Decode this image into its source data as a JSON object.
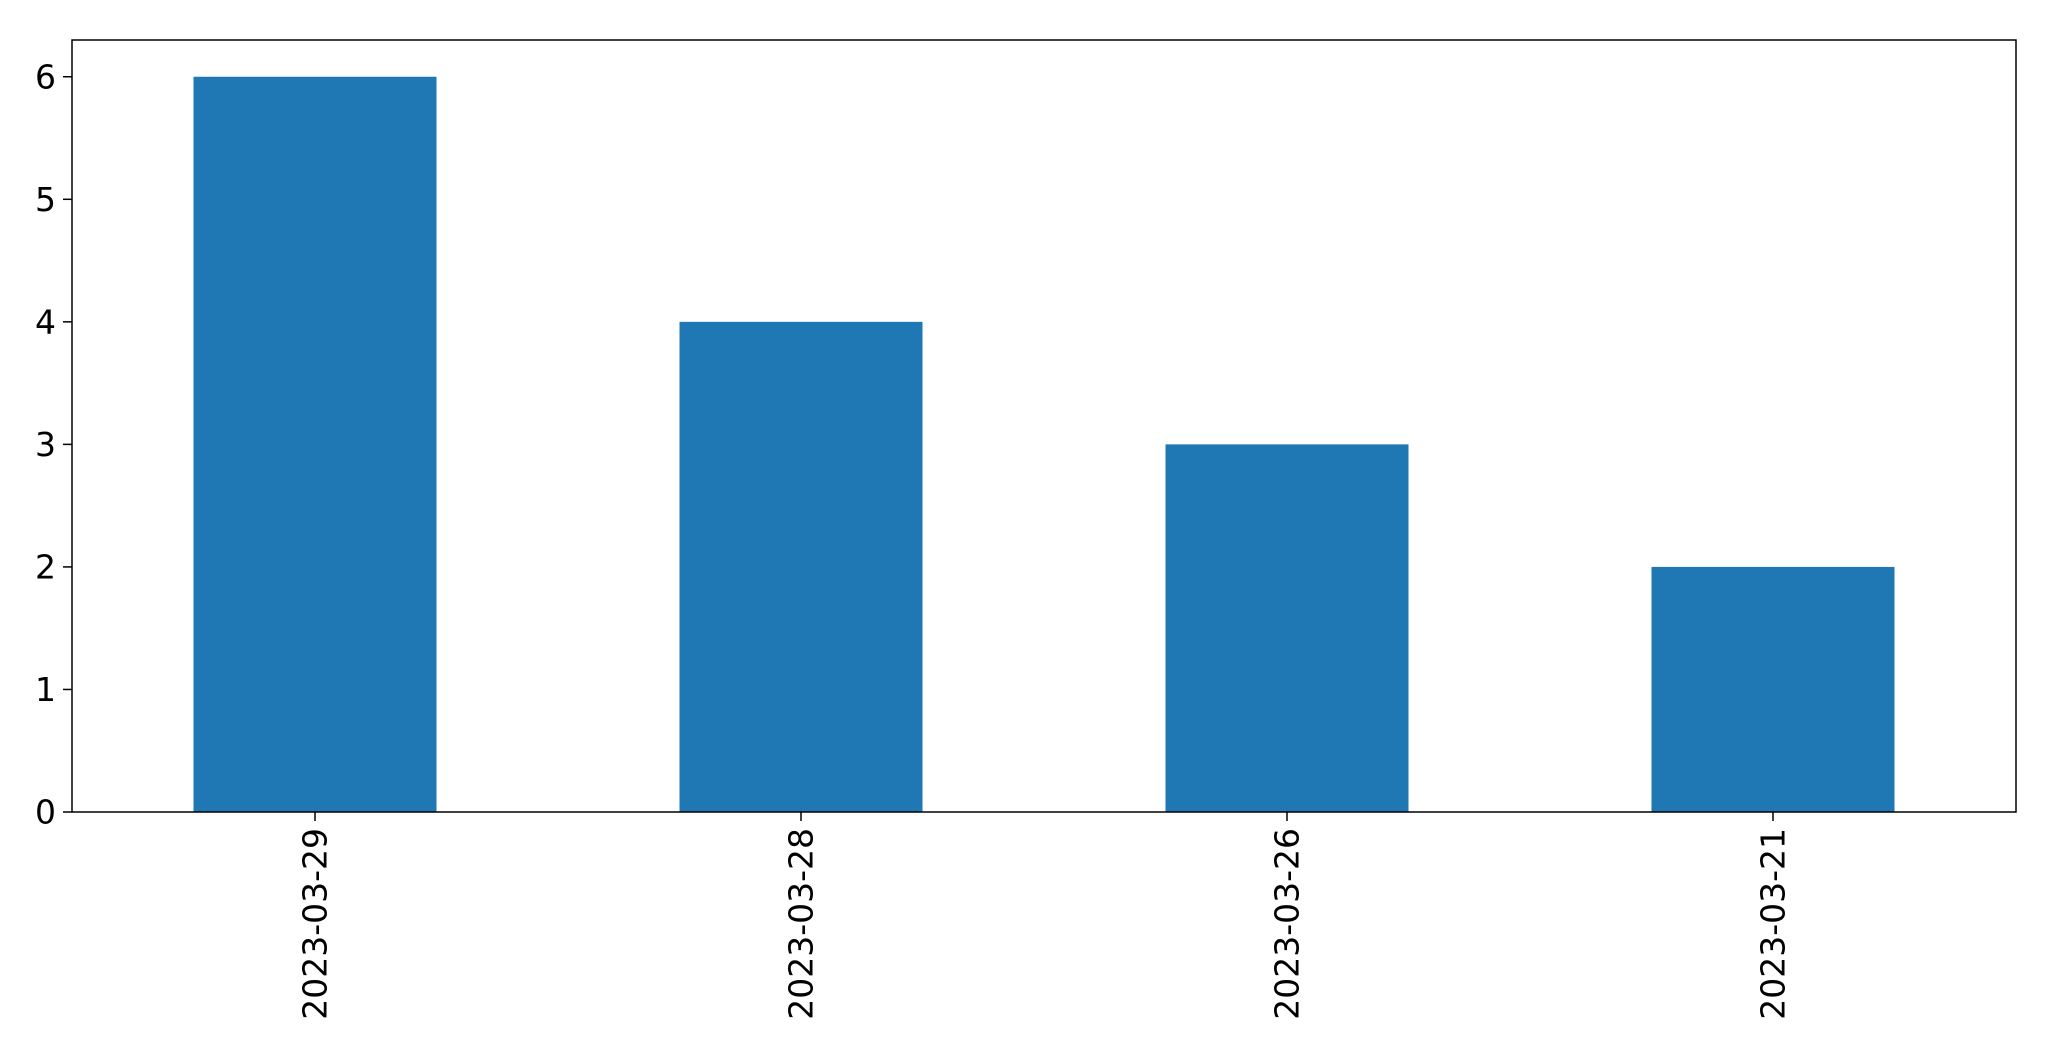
{
  "chart_data": {
    "type": "bar",
    "categories": [
      "2023-03-29",
      "2023-03-28",
      "2023-03-26",
      "2023-03-21"
    ],
    "values": [
      6,
      4,
      3,
      2
    ],
    "title": "",
    "xlabel": "",
    "ylabel": "",
    "ylim": [
      0,
      6.3
    ],
    "yticks": [
      0,
      1,
      2,
      3,
      4,
      5,
      6
    ],
    "grid": false,
    "legend": "none",
    "bar_color": "#1f77b4",
    "x_tick_rotation": "vertical"
  }
}
